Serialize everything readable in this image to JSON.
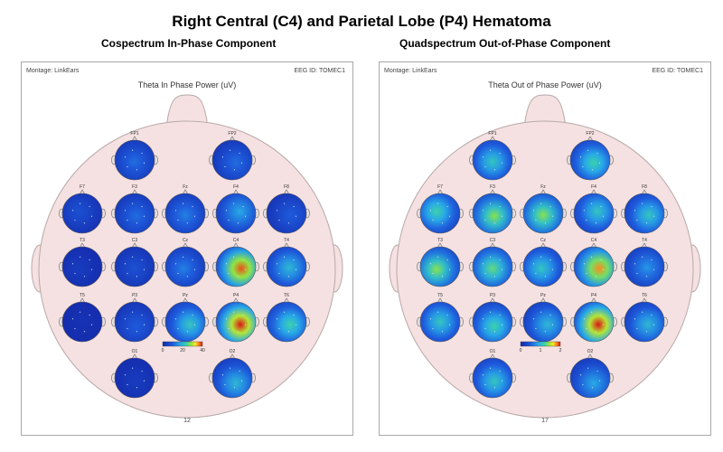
{
  "title": "Right Central (C4) and Parietal Lobe (P4) Hematoma",
  "panels": [
    {
      "id": "left",
      "subtitle": "Cospectrum In-Phase Component",
      "montage": "Montage:   LinkEars",
      "eeg_id": "EEG ID:   TOMEC1",
      "plot_title": "Theta In Phase Power (uV)",
      "scale_ticks": [
        "0",
        "20",
        "40"
      ],
      "page": "12",
      "electrodes": [
        {
          "label": "FP1",
          "hot": 0.3
        },
        {
          "label": "FP2",
          "hot": 0.3
        },
        {
          "label": "F7",
          "hot": 0.2
        },
        {
          "label": "F3",
          "hot": 0.3
        },
        {
          "label": "Fz",
          "hot": 0.35
        },
        {
          "label": "F4",
          "hot": 0.45
        },
        {
          "label": "F8",
          "hot": 0.25
        },
        {
          "label": "T3",
          "hot": 0.1
        },
        {
          "label": "C3",
          "hot": 0.2
        },
        {
          "label": "Cz",
          "hot": 0.35
        },
        {
          "label": "C4",
          "hot": 0.95
        },
        {
          "label": "T4",
          "hot": 0.5
        },
        {
          "label": "T5",
          "hot": 0.05
        },
        {
          "label": "P3",
          "hot": 0.25
        },
        {
          "label": "Pz",
          "hot": 0.55
        },
        {
          "label": "P4",
          "hot": 1.0
        },
        {
          "label": "T6",
          "hot": 0.6
        },
        {
          "label": "O1",
          "hot": 0.1
        },
        {
          "label": "O2",
          "hot": 0.5
        }
      ]
    },
    {
      "id": "right",
      "subtitle": "Quadspectrum Out-of-Phase Component",
      "montage": "Montage:   LinkEars",
      "eeg_id": "EEG ID:   TOMEC1",
      "plot_title": "Theta Out of Phase Power (uV)",
      "scale_ticks": [
        "0",
        "1",
        "2"
      ],
      "page": "17",
      "electrodes": [
        {
          "label": "FP1",
          "hot": 0.55
        },
        {
          "label": "FP2",
          "hot": 0.6
        },
        {
          "label": "F7",
          "hot": 0.6
        },
        {
          "label": "F3",
          "hot": 0.7
        },
        {
          "label": "Fz",
          "hot": 0.7
        },
        {
          "label": "F4",
          "hot": 0.55
        },
        {
          "label": "F8",
          "hot": 0.55
        },
        {
          "label": "T3",
          "hot": 0.7
        },
        {
          "label": "C3",
          "hot": 0.65
        },
        {
          "label": "Cz",
          "hot": 0.55
        },
        {
          "label": "C4",
          "hot": 0.9
        },
        {
          "label": "T4",
          "hot": 0.4
        },
        {
          "label": "T5",
          "hot": 0.55
        },
        {
          "label": "P3",
          "hot": 0.6
        },
        {
          "label": "Pz",
          "hot": 0.5
        },
        {
          "label": "P4",
          "hot": 1.0
        },
        {
          "label": "T6",
          "hot": 0.5
        },
        {
          "label": "O1",
          "hot": 0.55
        },
        {
          "label": "O2",
          "hot": 0.45
        }
      ]
    }
  ]
}
